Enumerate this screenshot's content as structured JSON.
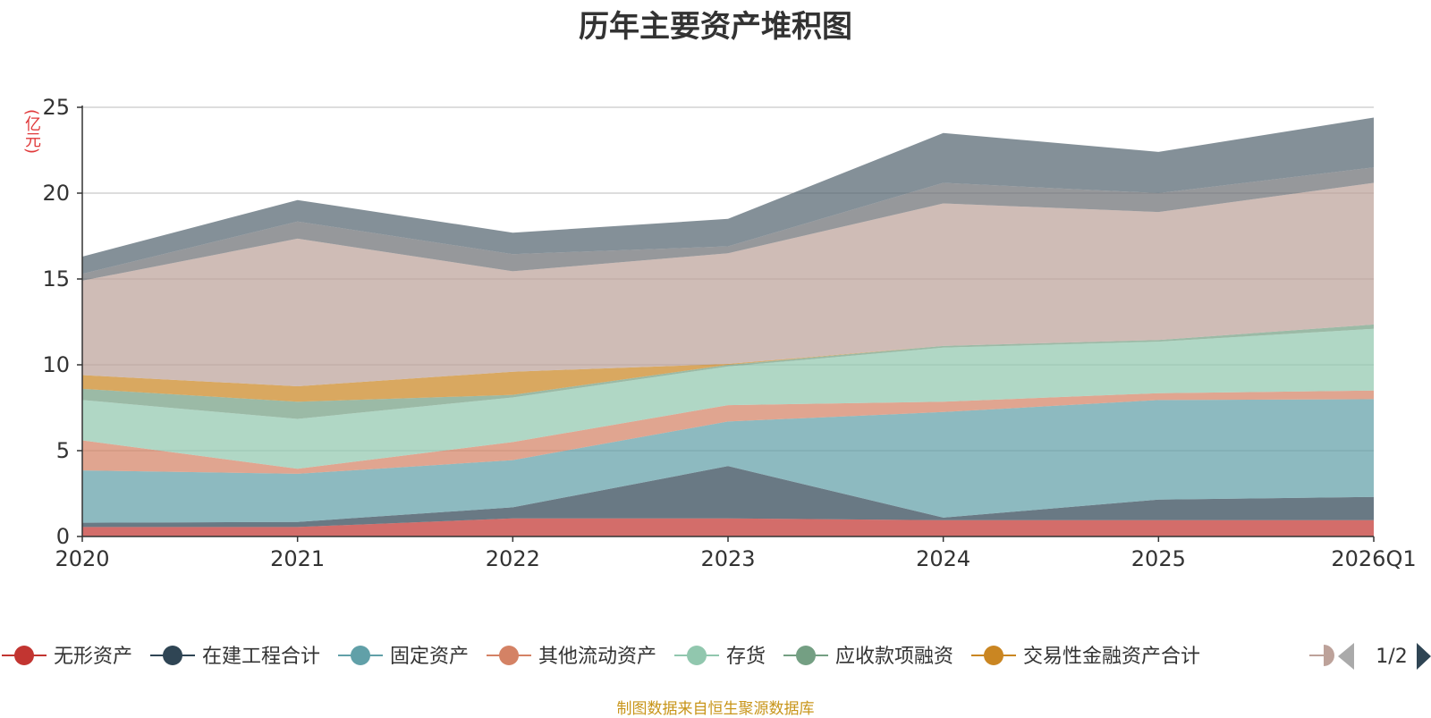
{
  "chart_data": {
    "type": "area",
    "stacked": true,
    "title": "历年主要资产堆积图",
    "ylabel": "(亿元)",
    "ylim": [
      0,
      25
    ],
    "yticks": [
      0,
      5,
      10,
      15,
      20,
      25
    ],
    "categories": [
      "2020",
      "2021",
      "2022",
      "2023",
      "2024",
      "2025",
      "2026Q1"
    ],
    "series": [
      {
        "name": "无形资产",
        "color": "#c23531",
        "legend": true,
        "values": [
          0.55,
          0.55,
          1.05,
          1.05,
          0.95,
          0.95,
          0.95
        ]
      },
      {
        "name": "在建工程合计",
        "color": "#2f4554",
        "legend": true,
        "values": [
          0.25,
          0.3,
          0.65,
          3.05,
          0.15,
          1.2,
          1.35
        ]
      },
      {
        "name": "固定资产",
        "color": "#61a0a8",
        "legend": true,
        "values": [
          3.05,
          2.8,
          2.75,
          2.6,
          6.15,
          5.8,
          5.7
        ]
      },
      {
        "name": "其他流动资产",
        "color": "#d48265",
        "legend": true,
        "values": [
          1.75,
          0.3,
          1.05,
          0.95,
          0.6,
          0.4,
          0.5
        ]
      },
      {
        "name": "存货",
        "color": "#91c7ae",
        "legend": true,
        "values": [
          2.35,
          2.9,
          2.6,
          2.25,
          3.15,
          3.0,
          3.6
        ]
      },
      {
        "name": "应收款项融资",
        "color": "#749f83",
        "legend": true,
        "values": [
          0.65,
          1.0,
          0.15,
          0.1,
          0.1,
          0.1,
          0.25
        ]
      },
      {
        "name": "交易性金融资产合计",
        "color": "#ca8622",
        "legend": true,
        "values": [
          0.8,
          0.9,
          1.35,
          0.05,
          0.0,
          0.0,
          0.0
        ]
      },
      {
        "name": "",
        "color": "#bda29a",
        "legend": false,
        "values": [
          5.5,
          8.6,
          5.85,
          6.45,
          8.3,
          7.45,
          8.25
        ]
      },
      {
        "name": "",
        "color": "#6e7074",
        "legend": false,
        "values": [
          0.4,
          1.0,
          1.0,
          0.4,
          1.2,
          1.1,
          0.9
        ]
      },
      {
        "name": "",
        "color": "#546570",
        "legend": false,
        "values": [
          1.0,
          1.25,
          1.25,
          1.6,
          2.9,
          2.4,
          2.9
        ]
      }
    ]
  },
  "legend": {
    "partial_item_color": "#bda29a",
    "page_indicator": "1/2",
    "prev_arrow_color": "#aaaaaa",
    "next_arrow_color": "#2f4554"
  },
  "source_note": "制图数据来自恒生聚源数据库"
}
